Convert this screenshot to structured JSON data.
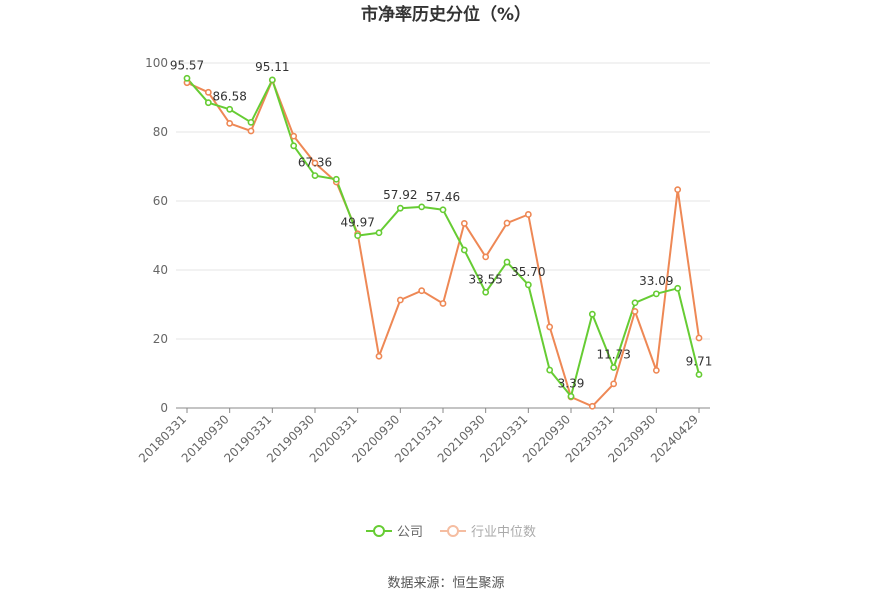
{
  "chart_data": {
    "type": "line",
    "title": "市净率历史分位（%）",
    "source": "数据来源：恒生聚源",
    "ylim": [
      0,
      100
    ],
    "yticks": [
      "0",
      "20",
      "40",
      "60",
      "80",
      "100"
    ],
    "x_tick_labels": [
      "20180331",
      "20180930",
      "20190331",
      "20190930",
      "20200331",
      "20200930",
      "20210331",
      "20210930",
      "20220331",
      "20220930",
      "20230331",
      "20230930",
      "20240429"
    ],
    "legend_position": "bottom",
    "grid": true,
    "series": [
      {
        "name": "公司",
        "color": "#66cc33",
        "values": [
          95.57,
          88.5,
          86.58,
          82.8,
          95.11,
          76.0,
          67.36,
          66.3,
          49.97,
          50.8,
          57.92,
          58.3,
          57.46,
          45.8,
          33.55,
          42.3,
          35.7,
          11.0,
          3.39,
          27.2,
          11.73,
          30.5,
          33.09,
          34.7,
          9.71
        ]
      },
      {
        "name": "行业中位数",
        "color": "#ee8855",
        "values": [
          94.3,
          91.5,
          82.5,
          80.3,
          95.0,
          78.8,
          71.0,
          65.5,
          50.5,
          15.0,
          31.3,
          34.0,
          30.3,
          53.5,
          43.8,
          53.6,
          56.1,
          23.5,
          3.2,
          0.5,
          7.0,
          28.0,
          10.9,
          63.3,
          20.3
        ]
      }
    ],
    "data_labels": [
      {
        "index": 0,
        "text": "95.57"
      },
      {
        "index": 2,
        "text": "86.58"
      },
      {
        "index": 4,
        "text": "95.11"
      },
      {
        "index": 6,
        "text": "67.36"
      },
      {
        "index": 8,
        "text": "49.97"
      },
      {
        "index": 10,
        "text": "57.92"
      },
      {
        "index": 12,
        "text": "57.46"
      },
      {
        "index": 14,
        "text": "33.55"
      },
      {
        "index": 16,
        "text": "35.70"
      },
      {
        "index": 18,
        "text": "3.39"
      },
      {
        "index": 20,
        "text": "11.73"
      },
      {
        "index": 22,
        "text": "33.09"
      },
      {
        "index": 24,
        "text": "9.71"
      }
    ]
  }
}
